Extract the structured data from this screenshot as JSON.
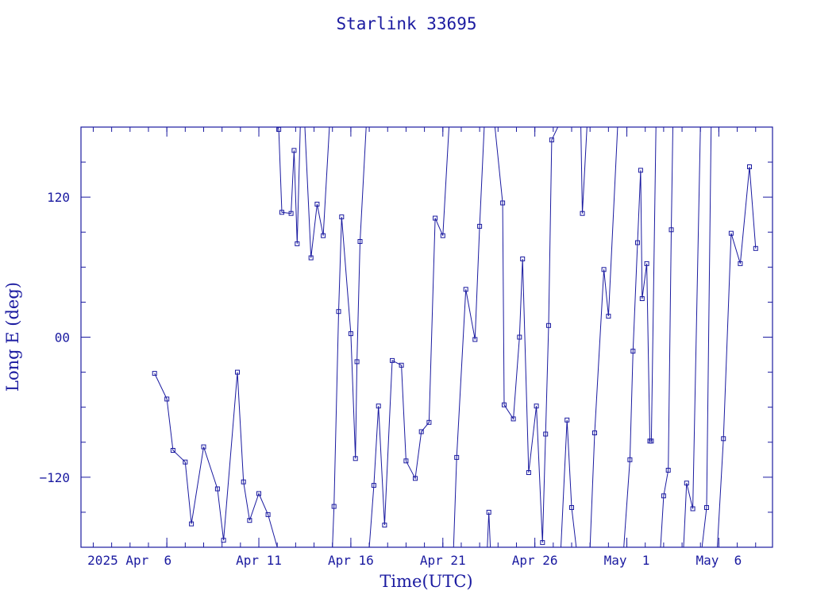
{
  "chart_data": {
    "type": "line",
    "title": "Starlink 33695",
    "xlabel": "Time(UTC)",
    "ylabel": "Long E (deg)",
    "xlim": [
      "2025-04-01T08:00",
      "2025-05-08T22:00"
    ],
    "ylim": [
      -180,
      180
    ],
    "x_ticks": [
      {
        "date": "2025-04-06",
        "label": "2025 Apr  6"
      },
      {
        "date": "2025-04-11",
        "label": "Apr 11"
      },
      {
        "date": "2025-04-16",
        "label": "Apr 16"
      },
      {
        "date": "2025-04-21",
        "label": "Apr 21"
      },
      {
        "date": "2025-04-26",
        "label": "Apr 26"
      },
      {
        "date": "2025-05-01",
        "label": "May  1"
      },
      {
        "date": "2025-05-06",
        "label": "May  6"
      }
    ],
    "y_ticks": [
      {
        "value": -120,
        "label": "−120"
      },
      {
        "value": 0,
        "label": "00"
      },
      {
        "value": 120,
        "label": "120"
      }
    ],
    "colors": {
      "line": "#1a1aa0",
      "axis": "#1a1aa0",
      "text": "#1a1aa0"
    },
    "series": [
      {
        "marker": "square",
        "points": [
          [
            "2025-04-05T08:00",
            -31
          ],
          [
            "2025-04-06T00:00",
            -53
          ],
          [
            "2025-04-06T08:00",
            -97
          ],
          [
            "2025-04-07T00:00",
            -107
          ],
          [
            "2025-04-07T08:00",
            -160
          ],
          [
            "2025-04-08T00:00",
            -94
          ],
          [
            "2025-04-08T18:00",
            -130
          ],
          [
            "2025-04-09T02:00",
            -174
          ],
          [
            "2025-04-09T20:00",
            -30
          ],
          [
            "2025-04-10T04:00",
            -124
          ],
          [
            "2025-04-10T12:00",
            -157
          ],
          [
            "2025-04-11T00:00",
            -134
          ],
          [
            "2025-04-11T12:00",
            -152
          ],
          [
            "2025-04-12T00:00",
            -180,
            "break"
          ],
          [
            "2025-04-12T01:00",
            180
          ],
          [
            "2025-04-12T02:00",
            178
          ],
          [
            "2025-04-12T06:00",
            107
          ],
          [
            "2025-04-12T18:00",
            106
          ],
          [
            "2025-04-12T22:00",
            160
          ],
          [
            "2025-04-13T02:00",
            80
          ],
          [
            "2025-04-13T06:00",
            180
          ],
          [
            "2025-04-13T12:00",
            180
          ],
          [
            "2025-04-13T20:00",
            68
          ],
          [
            "2025-04-14T04:00",
            114
          ],
          [
            "2025-04-14T12:00",
            87
          ],
          [
            "2025-04-14T20:00",
            180,
            "break"
          ],
          [
            "2025-04-15T00:00",
            -180
          ],
          [
            "2025-04-15T02:00",
            -145
          ],
          [
            "2025-04-15T08:00",
            22
          ],
          [
            "2025-04-15T12:00",
            103
          ],
          [
            "2025-04-16T00:00",
            3
          ],
          [
            "2025-04-16T06:00",
            -104
          ],
          [
            "2025-04-16T08:00",
            -21
          ],
          [
            "2025-04-16T12:00",
            82
          ],
          [
            "2025-04-16T20:00",
            180,
            "break"
          ],
          [
            "2025-04-17T00:00",
            -180
          ],
          [
            "2025-04-17T06:00",
            -127
          ],
          [
            "2025-04-17T12:00",
            -59
          ],
          [
            "2025-04-17T20:00",
            -161
          ],
          [
            "2025-04-18T06:00",
            -20
          ],
          [
            "2025-04-18T18:00",
            -24
          ],
          [
            "2025-04-19T00:00",
            -106
          ],
          [
            "2025-04-19T12:00",
            -121
          ],
          [
            "2025-04-19T20:00",
            -81
          ],
          [
            "2025-04-20T06:00",
            -73
          ],
          [
            "2025-04-20T14:00",
            102
          ],
          [
            "2025-04-21T00:00",
            87
          ],
          [
            "2025-04-21T08:00",
            180,
            "break"
          ],
          [
            "2025-04-21T14:00",
            -180
          ],
          [
            "2025-04-21T18:00",
            -103
          ],
          [
            "2025-04-22T06:00",
            41
          ],
          [
            "2025-04-22T18:00",
            -2
          ],
          [
            "2025-04-23T00:00",
            95
          ],
          [
            "2025-04-23T06:00",
            180,
            "break"
          ],
          [
            "2025-04-23T10:00",
            -180
          ],
          [
            "2025-04-23T12:00",
            -150
          ],
          [
            "2025-04-23T14:00",
            -180,
            "break"
          ],
          [
            "2025-04-23T20:00",
            180
          ],
          [
            "2025-04-24T06:00",
            115
          ],
          [
            "2025-04-24T08:00",
            -58
          ],
          [
            "2025-04-24T20:00",
            -70
          ],
          [
            "2025-04-25T04:00",
            0
          ],
          [
            "2025-04-25T08:00",
            67
          ],
          [
            "2025-04-25T16:00",
            -116
          ],
          [
            "2025-04-26T02:00",
            -59
          ],
          [
            "2025-04-26T10:00",
            -176
          ],
          [
            "2025-04-26T14:00",
            -83
          ],
          [
            "2025-04-26T18:00",
            10
          ],
          [
            "2025-04-26T22:00",
            169
          ],
          [
            "2025-04-27T06:00",
            180,
            "break"
          ],
          [
            "2025-04-27T10:00",
            -180
          ],
          [
            "2025-04-27T18:00",
            -71
          ],
          [
            "2025-04-28T00:00",
            -146
          ],
          [
            "2025-04-28T06:00",
            -180,
            "break"
          ],
          [
            "2025-04-28T12:00",
            180
          ],
          [
            "2025-04-28T14:00",
            106
          ],
          [
            "2025-04-28T20:00",
            180,
            "break"
          ],
          [
            "2025-04-29T00:00",
            -180
          ],
          [
            "2025-04-29T06:00",
            -82
          ],
          [
            "2025-04-29T18:00",
            58
          ],
          [
            "2025-04-30T00:00",
            18
          ],
          [
            "2025-04-30T12:00",
            180,
            "break"
          ],
          [
            "2025-04-30T20:00",
            -180
          ],
          [
            "2025-05-01T04:00",
            -105
          ],
          [
            "2025-05-01T08:00",
            -12
          ],
          [
            "2025-05-01T14:00",
            81
          ],
          [
            "2025-05-01T18:00",
            143
          ],
          [
            "2025-05-01T20:00",
            33
          ],
          [
            "2025-05-02T02:00",
            63
          ],
          [
            "2025-05-02T06:00",
            -89
          ],
          [
            "2025-05-02T08:00",
            -89
          ],
          [
            "2025-05-02T14:00",
            180,
            "break"
          ],
          [
            "2025-05-02T20:00",
            -180
          ],
          [
            "2025-05-03T00:00",
            -136
          ],
          [
            "2025-05-03T06:00",
            -114
          ],
          [
            "2025-05-03T10:00",
            92
          ],
          [
            "2025-05-03T12:00",
            180,
            "break"
          ],
          [
            "2025-05-04T02:00",
            -180
          ],
          [
            "2025-05-04T06:00",
            -125
          ],
          [
            "2025-05-04T14:00",
            -147
          ],
          [
            "2025-05-05T00:00",
            180,
            "break"
          ],
          [
            "2025-05-05T02:00",
            -180
          ],
          [
            "2025-05-05T08:00",
            -146
          ],
          [
            "2025-05-05T14:00",
            180,
            "break"
          ],
          [
            "2025-05-05T22:00",
            -180
          ],
          [
            "2025-05-06T06:00",
            -87
          ],
          [
            "2025-05-06T16:00",
            89
          ],
          [
            "2025-05-07T04:00",
            63
          ],
          [
            "2025-05-07T16:00",
            146
          ],
          [
            "2025-05-08T00:00",
            76
          ]
        ]
      }
    ]
  }
}
